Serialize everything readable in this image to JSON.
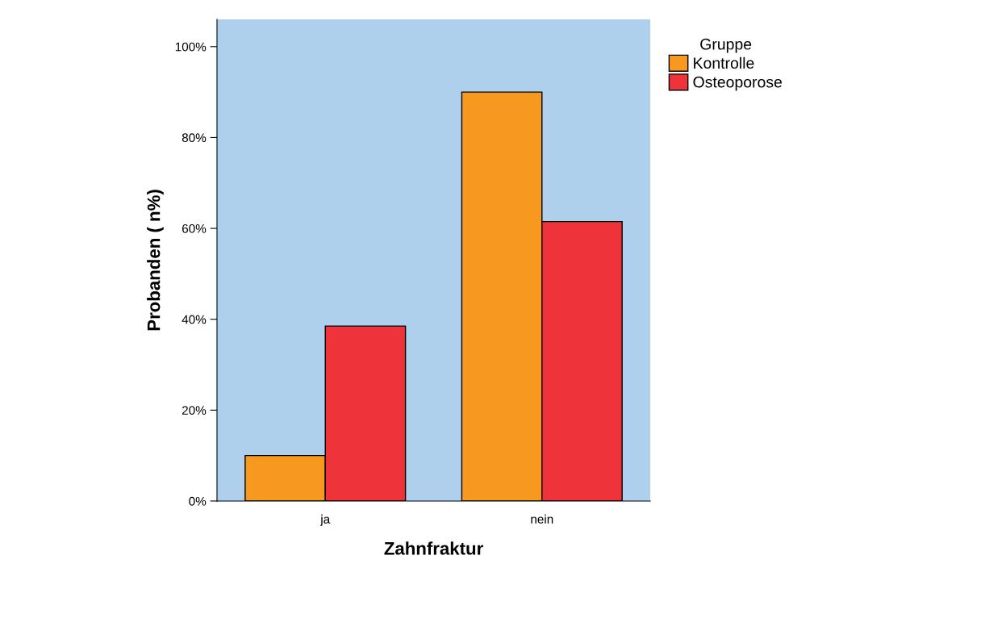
{
  "chart_data": {
    "type": "bar",
    "xlabel": "Zahnfraktur",
    "ylabel": "Probanden ( n%)",
    "legend_title": "Gruppe",
    "categories": [
      "ja",
      "nein"
    ],
    "series": [
      {
        "name": "Kontrolle",
        "color": "#f7991f",
        "values": [
          10,
          90
        ]
      },
      {
        "name": "Osteoporose",
        "color": "#ef333a",
        "values": [
          38.5,
          61.5
        ]
      }
    ],
    "ylim": [
      0,
      106
    ],
    "yticks": [
      {
        "value": 0,
        "label": "0%"
      },
      {
        "value": 20,
        "label": "20%"
      },
      {
        "value": 40,
        "label": "40%"
      },
      {
        "value": 60,
        "label": "60%"
      },
      {
        "value": 80,
        "label": "80%"
      },
      {
        "value": 100,
        "label": "100%"
      }
    ],
    "grid": false,
    "legend": "top right"
  }
}
